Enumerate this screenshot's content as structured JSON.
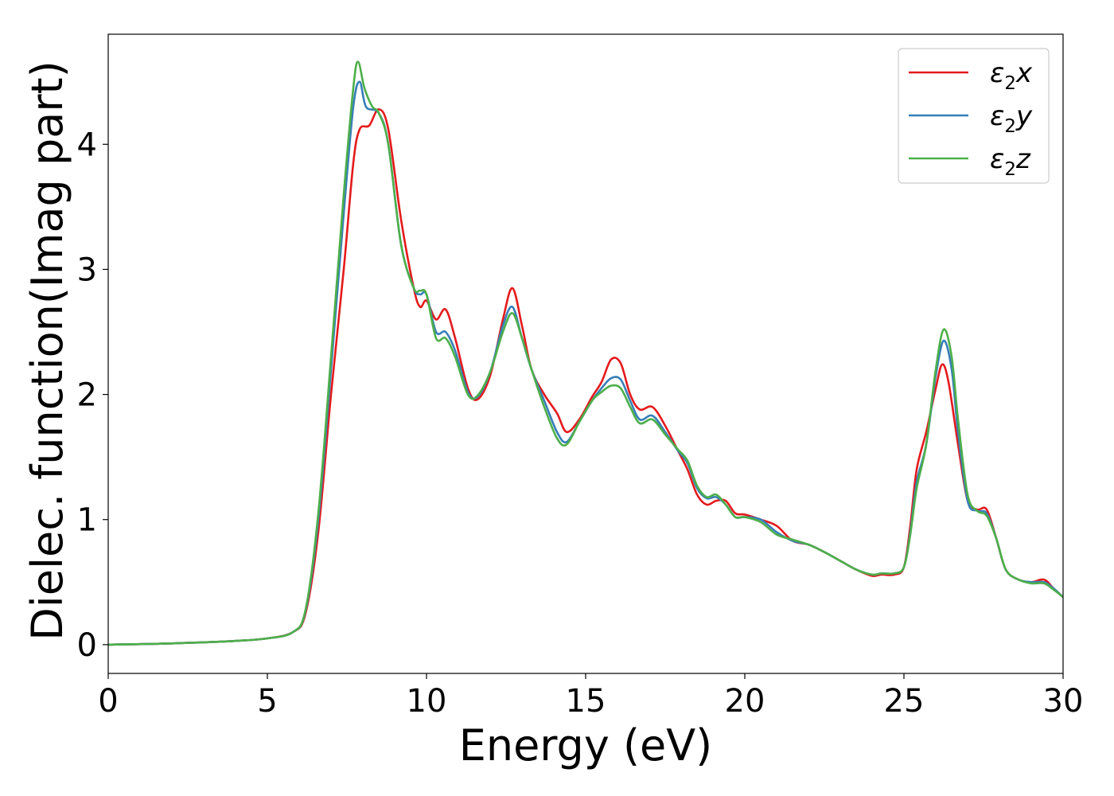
{
  "chart_data": {
    "type": "line",
    "xlabel": "Energy (eV)",
    "ylabel": "Dielec. function(Imag part)",
    "xlim": [
      0,
      30
    ],
    "ylim": [
      -0.23,
      4.88
    ],
    "xticks": [
      "0",
      "5",
      "10",
      "15",
      "20",
      "25",
      "30"
    ],
    "yticks": [
      "0",
      "1",
      "2",
      "3",
      "4"
    ],
    "grid": false,
    "legend_position": "top-right",
    "series": [
      {
        "name": "ε₂x",
        "legend_base": "ε",
        "legend_sub": "2",
        "legend_tail": "x",
        "color": "#e41a1c",
        "points": [
          [
            0,
            0
          ],
          [
            2,
            0.01
          ],
          [
            4,
            0.03
          ],
          [
            5,
            0.05
          ],
          [
            5.8,
            0.1
          ],
          [
            6.2,
            0.25
          ],
          [
            6.6,
            0.9
          ],
          [
            7,
            2.0
          ],
          [
            7.4,
            3.0
          ],
          [
            7.7,
            3.85
          ],
          [
            7.9,
            4.12
          ],
          [
            8.2,
            4.15
          ],
          [
            8.5,
            4.28
          ],
          [
            8.8,
            4.12
          ],
          [
            9.2,
            3.4
          ],
          [
            9.6,
            2.85
          ],
          [
            9.8,
            2.7
          ],
          [
            10.0,
            2.75
          ],
          [
            10.3,
            2.6
          ],
          [
            10.6,
            2.68
          ],
          [
            10.9,
            2.45
          ],
          [
            11.3,
            2.05
          ],
          [
            11.6,
            1.96
          ],
          [
            12.0,
            2.15
          ],
          [
            12.4,
            2.6
          ],
          [
            12.7,
            2.85
          ],
          [
            13.0,
            2.55
          ],
          [
            13.3,
            2.2
          ],
          [
            13.7,
            2.0
          ],
          [
            14.1,
            1.85
          ],
          [
            14.4,
            1.7
          ],
          [
            14.8,
            1.8
          ],
          [
            15.2,
            1.98
          ],
          [
            15.5,
            2.1
          ],
          [
            15.8,
            2.28
          ],
          [
            16.1,
            2.25
          ],
          [
            16.4,
            2.0
          ],
          [
            16.7,
            1.88
          ],
          [
            17.1,
            1.9
          ],
          [
            17.5,
            1.75
          ],
          [
            17.9,
            1.55
          ],
          [
            18.2,
            1.4
          ],
          [
            18.5,
            1.2
          ],
          [
            18.8,
            1.12
          ],
          [
            19.1,
            1.15
          ],
          [
            19.4,
            1.15
          ],
          [
            19.7,
            1.05
          ],
          [
            20.0,
            1.04
          ],
          [
            20.5,
            1.0
          ],
          [
            21.0,
            0.95
          ],
          [
            21.5,
            0.83
          ],
          [
            22.0,
            0.8
          ],
          [
            22.5,
            0.74
          ],
          [
            23.0,
            0.67
          ],
          [
            23.5,
            0.6
          ],
          [
            24.0,
            0.55
          ],
          [
            24.3,
            0.56
          ],
          [
            24.7,
            0.56
          ],
          [
            25.0,
            0.62
          ],
          [
            25.2,
            0.95
          ],
          [
            25.4,
            1.4
          ],
          [
            25.7,
            1.7
          ],
          [
            26.0,
            2.05
          ],
          [
            26.2,
            2.24
          ],
          [
            26.4,
            2.1
          ],
          [
            26.7,
            1.6
          ],
          [
            27.0,
            1.15
          ],
          [
            27.3,
            1.08
          ],
          [
            27.6,
            1.08
          ],
          [
            27.9,
            0.85
          ],
          [
            28.2,
            0.6
          ],
          [
            28.6,
            0.52
          ],
          [
            29.0,
            0.5
          ],
          [
            29.4,
            0.52
          ],
          [
            29.7,
            0.45
          ],
          [
            30.0,
            0.38
          ]
        ]
      },
      {
        "name": "ε₂y",
        "legend_base": "ε",
        "legend_sub": "2",
        "legend_tail": "y",
        "color": "#377eb8",
        "points": [
          [
            0,
            0
          ],
          [
            2,
            0.01
          ],
          [
            4,
            0.03
          ],
          [
            5,
            0.05
          ],
          [
            5.8,
            0.1
          ],
          [
            6.2,
            0.27
          ],
          [
            6.6,
            1.0
          ],
          [
            7,
            2.2
          ],
          [
            7.4,
            3.45
          ],
          [
            7.7,
            4.3
          ],
          [
            7.9,
            4.5
          ],
          [
            8.1,
            4.3
          ],
          [
            8.5,
            4.25
          ],
          [
            8.8,
            4.0
          ],
          [
            9.2,
            3.2
          ],
          [
            9.6,
            2.85
          ],
          [
            9.8,
            2.8
          ],
          [
            10.0,
            2.8
          ],
          [
            10.3,
            2.5
          ],
          [
            10.6,
            2.5
          ],
          [
            10.9,
            2.35
          ],
          [
            11.3,
            2.02
          ],
          [
            11.6,
            1.98
          ],
          [
            12.0,
            2.18
          ],
          [
            12.4,
            2.55
          ],
          [
            12.7,
            2.7
          ],
          [
            13.0,
            2.45
          ],
          [
            13.3,
            2.2
          ],
          [
            13.7,
            1.95
          ],
          [
            14.1,
            1.7
          ],
          [
            14.4,
            1.62
          ],
          [
            14.8,
            1.78
          ],
          [
            15.2,
            1.95
          ],
          [
            15.5,
            2.05
          ],
          [
            15.8,
            2.13
          ],
          [
            16.1,
            2.12
          ],
          [
            16.4,
            1.95
          ],
          [
            16.7,
            1.8
          ],
          [
            17.1,
            1.83
          ],
          [
            17.5,
            1.7
          ],
          [
            17.9,
            1.55
          ],
          [
            18.2,
            1.45
          ],
          [
            18.5,
            1.25
          ],
          [
            18.8,
            1.17
          ],
          [
            19.1,
            1.18
          ],
          [
            19.4,
            1.12
          ],
          [
            19.7,
            1.02
          ],
          [
            20.0,
            1.02
          ],
          [
            20.5,
            1.0
          ],
          [
            21.0,
            0.9
          ],
          [
            21.5,
            0.83
          ],
          [
            22.0,
            0.8
          ],
          [
            22.5,
            0.74
          ],
          [
            23.0,
            0.67
          ],
          [
            23.5,
            0.6
          ],
          [
            24.0,
            0.56
          ],
          [
            24.3,
            0.57
          ],
          [
            24.7,
            0.57
          ],
          [
            25.0,
            0.62
          ],
          [
            25.2,
            0.9
          ],
          [
            25.4,
            1.3
          ],
          [
            25.7,
            1.6
          ],
          [
            26.0,
            2.15
          ],
          [
            26.25,
            2.43
          ],
          [
            26.5,
            2.2
          ],
          [
            26.7,
            1.7
          ],
          [
            27.0,
            1.15
          ],
          [
            27.3,
            1.07
          ],
          [
            27.6,
            1.05
          ],
          [
            27.9,
            0.85
          ],
          [
            28.2,
            0.6
          ],
          [
            28.6,
            0.52
          ],
          [
            29.0,
            0.5
          ],
          [
            29.4,
            0.5
          ],
          [
            29.7,
            0.45
          ],
          [
            30.0,
            0.38
          ]
        ]
      },
      {
        "name": "ε₂z",
        "legend_base": "ε",
        "legend_sub": "2",
        "legend_tail": "z",
        "color": "#4daf4a",
        "points": [
          [
            0,
            0
          ],
          [
            2,
            0.01
          ],
          [
            4,
            0.03
          ],
          [
            5,
            0.05
          ],
          [
            5.8,
            0.1
          ],
          [
            6.2,
            0.28
          ],
          [
            6.6,
            1.05
          ],
          [
            7,
            2.3
          ],
          [
            7.4,
            3.6
          ],
          [
            7.7,
            4.45
          ],
          [
            7.85,
            4.66
          ],
          [
            8.05,
            4.45
          ],
          [
            8.3,
            4.3
          ],
          [
            8.5,
            4.25
          ],
          [
            8.8,
            4.0
          ],
          [
            9.2,
            3.2
          ],
          [
            9.6,
            2.85
          ],
          [
            9.8,
            2.83
          ],
          [
            10.0,
            2.8
          ],
          [
            10.3,
            2.45
          ],
          [
            10.6,
            2.45
          ],
          [
            10.9,
            2.3
          ],
          [
            11.3,
            2.0
          ],
          [
            11.6,
            1.99
          ],
          [
            12.0,
            2.18
          ],
          [
            12.4,
            2.5
          ],
          [
            12.7,
            2.65
          ],
          [
            13.0,
            2.45
          ],
          [
            13.3,
            2.2
          ],
          [
            13.7,
            1.9
          ],
          [
            14.1,
            1.65
          ],
          [
            14.4,
            1.6
          ],
          [
            14.8,
            1.78
          ],
          [
            15.2,
            1.95
          ],
          [
            15.5,
            2.02
          ],
          [
            15.8,
            2.07
          ],
          [
            16.1,
            2.05
          ],
          [
            16.4,
            1.9
          ],
          [
            16.7,
            1.77
          ],
          [
            17.1,
            1.8
          ],
          [
            17.5,
            1.68
          ],
          [
            17.9,
            1.56
          ],
          [
            18.2,
            1.47
          ],
          [
            18.5,
            1.27
          ],
          [
            18.8,
            1.18
          ],
          [
            19.1,
            1.2
          ],
          [
            19.4,
            1.12
          ],
          [
            19.7,
            1.02
          ],
          [
            20.0,
            1.02
          ],
          [
            20.5,
            0.98
          ],
          [
            21.0,
            0.88
          ],
          [
            21.5,
            0.84
          ],
          [
            22.0,
            0.8
          ],
          [
            22.5,
            0.74
          ],
          [
            23.0,
            0.67
          ],
          [
            23.5,
            0.6
          ],
          [
            24.0,
            0.56
          ],
          [
            24.3,
            0.57
          ],
          [
            24.7,
            0.57
          ],
          [
            25.0,
            0.62
          ],
          [
            25.2,
            0.88
          ],
          [
            25.4,
            1.25
          ],
          [
            25.7,
            1.6
          ],
          [
            26.0,
            2.2
          ],
          [
            26.25,
            2.52
          ],
          [
            26.5,
            2.3
          ],
          [
            26.7,
            1.8
          ],
          [
            27.0,
            1.2
          ],
          [
            27.3,
            1.07
          ],
          [
            27.6,
            1.03
          ],
          [
            27.9,
            0.85
          ],
          [
            28.2,
            0.6
          ],
          [
            28.6,
            0.52
          ],
          [
            29.0,
            0.49
          ],
          [
            29.4,
            0.49
          ],
          [
            29.7,
            0.44
          ],
          [
            30.0,
            0.38
          ]
        ]
      }
    ]
  }
}
